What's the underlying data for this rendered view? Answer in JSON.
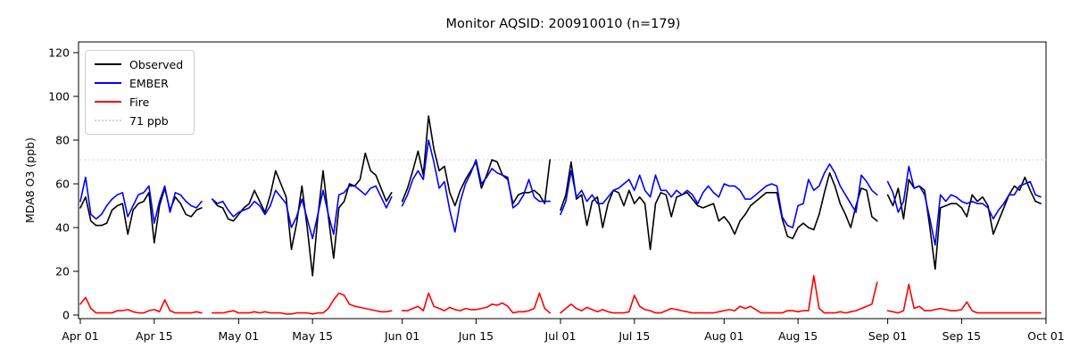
{
  "chart_data": {
    "type": "line",
    "title": "Monitor AQSID: 200910010 (n=179)",
    "ylabel": "MDA8 O3 (ppb)",
    "xlabel": "",
    "grid": false,
    "legend_position": "upper left",
    "ylim": [
      -2,
      125
    ],
    "yticks": [
      0,
      20,
      40,
      60,
      80,
      100,
      120
    ],
    "xticks": [
      {
        "label": "Apr 01",
        "day": 0
      },
      {
        "label": "Apr 15",
        "day": 14
      },
      {
        "label": "May 01",
        "day": 30
      },
      {
        "label": "May 15",
        "day": 44
      },
      {
        "label": "Jun 01",
        "day": 61
      },
      {
        "label": "Jun 15",
        "day": 75
      },
      {
        "label": "Jul 01",
        "day": 91
      },
      {
        "label": "Jul 15",
        "day": 105
      },
      {
        "label": "Aug 01",
        "day": 122
      },
      {
        "label": "Aug 15",
        "day": 136
      },
      {
        "label": "Sep 01",
        "day": 153
      },
      {
        "label": "Sep 15",
        "day": 167
      },
      {
        "label": "Oct 01",
        "day": 183
      }
    ],
    "x_dates": [
      "04-01",
      "04-02",
      "04-03",
      "04-04",
      "04-05",
      "04-06",
      "04-07",
      "04-08",
      "04-09",
      "04-10",
      "04-11",
      "04-12",
      "04-13",
      "04-14",
      "04-15",
      "04-16",
      "04-17",
      "04-18",
      "04-19",
      "04-20",
      "04-21",
      "04-22",
      "04-23",
      "04-24",
      "04-25",
      "04-26",
      "04-27",
      "04-28",
      "04-29",
      "04-30",
      "05-01",
      "05-02",
      "05-03",
      "05-04",
      "05-05",
      "05-06",
      "05-07",
      "05-08",
      "05-09",
      "05-10",
      "05-11",
      "05-12",
      "05-13",
      "05-14",
      "05-15",
      "05-16",
      "05-17",
      "05-18",
      "05-19",
      "05-20",
      "05-21",
      "05-22",
      "05-23",
      "05-24",
      "05-25",
      "05-26",
      "05-27",
      "05-28",
      "05-29",
      "05-30",
      "05-31",
      "06-01",
      "06-02",
      "06-03",
      "06-04",
      "06-05",
      "06-06",
      "06-07",
      "06-08",
      "06-09",
      "06-10",
      "06-11",
      "06-12",
      "06-13",
      "06-14",
      "06-15",
      "06-16",
      "06-17",
      "06-18",
      "06-19",
      "06-20",
      "06-21",
      "06-22",
      "06-23",
      "06-24",
      "06-25",
      "06-26",
      "06-27",
      "06-28",
      "06-29",
      "06-30",
      "07-01",
      "07-02",
      "07-03",
      "07-04",
      "07-05",
      "07-06",
      "07-07",
      "07-08",
      "07-09",
      "07-10",
      "07-11",
      "07-12",
      "07-13",
      "07-14",
      "07-15",
      "07-16",
      "07-17",
      "07-18",
      "07-19",
      "07-20",
      "07-21",
      "07-22",
      "07-23",
      "07-24",
      "07-25",
      "07-26",
      "07-27",
      "07-28",
      "07-29",
      "07-30",
      "07-31",
      "08-01",
      "08-02",
      "08-03",
      "08-04",
      "08-05",
      "08-06",
      "08-07",
      "08-08",
      "08-09",
      "08-10",
      "08-11",
      "08-12",
      "08-13",
      "08-14",
      "08-15",
      "08-16",
      "08-17",
      "08-18",
      "08-19",
      "08-20",
      "08-21",
      "08-22",
      "08-23",
      "08-24",
      "08-25",
      "08-26",
      "08-27",
      "08-28",
      "08-29",
      "08-30",
      "08-31",
      "09-01",
      "09-02",
      "09-03",
      "09-04",
      "09-05",
      "09-06",
      "09-07",
      "09-08",
      "09-09",
      "09-10",
      "09-11",
      "09-12",
      "09-13",
      "09-14",
      "09-15",
      "09-16",
      "09-17",
      "09-18",
      "09-19",
      "09-20",
      "09-21",
      "09-22",
      "09-23",
      "09-24",
      "09-25",
      "09-26",
      "09-27",
      "09-28",
      "09-29",
      "09-30"
    ],
    "series": [
      {
        "name": "Observed",
        "color": "#000000",
        "values": [
          49,
          54,
          43,
          41,
          41,
          42,
          48,
          50,
          51,
          37,
          48,
          51,
          52,
          56,
          33,
          50,
          58,
          48,
          54,
          51,
          46,
          45,
          48,
          49,
          null,
          53,
          50,
          49,
          44,
          43,
          46,
          49,
          51,
          57,
          52,
          47,
          55,
          66,
          60,
          54,
          30,
          42,
          59,
          40,
          18,
          45,
          66,
          45,
          26,
          49,
          52,
          60,
          59,
          62,
          74,
          66,
          64,
          58,
          52,
          56,
          null,
          52,
          58,
          66,
          75,
          64,
          91,
          76,
          66,
          68,
          56,
          50,
          57,
          62,
          66,
          70,
          58,
          64,
          71,
          70,
          64,
          62,
          51,
          55,
          56,
          56,
          57,
          55,
          51,
          71,
          null,
          48,
          55,
          70,
          53,
          55,
          41,
          52,
          54,
          40,
          51,
          57,
          56,
          50,
          57,
          51,
          54,
          51,
          30,
          51,
          56,
          55,
          45,
          54,
          55,
          56,
          53,
          50,
          49,
          50,
          51,
          43,
          45,
          42,
          37,
          43,
          46,
          50,
          52,
          54,
          56,
          56,
          56,
          44,
          36,
          35,
          40,
          42,
          40,
          39,
          46,
          56,
          65,
          59,
          51,
          46,
          40,
          50,
          58,
          57,
          45,
          43,
          null,
          55,
          50,
          58,
          44,
          62,
          58,
          59,
          57,
          40,
          21,
          49,
          50,
          51,
          51,
          49,
          45,
          55,
          52,
          54,
          50,
          37,
          43,
          49,
          55,
          59,
          57,
          63,
          57,
          52,
          51
        ]
      },
      {
        "name": "EMBER",
        "color": "#0000ff",
        "values": [
          52,
          63,
          46,
          44,
          46,
          50,
          53,
          55,
          56,
          45,
          50,
          55,
          56,
          59,
          42,
          52,
          59,
          47,
          56,
          55,
          52,
          50,
          49,
          52,
          null,
          53,
          51,
          52,
          48,
          45,
          47,
          48,
          49,
          52,
          50,
          46,
          50,
          57,
          54,
          51,
          40,
          45,
          53,
          44,
          35,
          46,
          57,
          46,
          37,
          55,
          56,
          59,
          59,
          57,
          55,
          58,
          59,
          54,
          49,
          54,
          null,
          50,
          55,
          62,
          66,
          62,
          80,
          70,
          58,
          61,
          48,
          38,
          52,
          60,
          65,
          71,
          60,
          63,
          67,
          65,
          64,
          63,
          49,
          51,
          55,
          62,
          54,
          52,
          52,
          52,
          null,
          46,
          52,
          66,
          54,
          57,
          52,
          55,
          51,
          51,
          54,
          57,
          58,
          60,
          62,
          57,
          64,
          57,
          54,
          64,
          57,
          57,
          54,
          57,
          55,
          57,
          55,
          51,
          56,
          59,
          56,
          54,
          60,
          59,
          59,
          57,
          53,
          53,
          55,
          57,
          59,
          60,
          59,
          45,
          41,
          40,
          50,
          51,
          62,
          57,
          59,
          65,
          69,
          65,
          59,
          55,
          51,
          47,
          64,
          61,
          57,
          55,
          null,
          61,
          56,
          47,
          52,
          68,
          58,
          59,
          55,
          44,
          32,
          55,
          52,
          55,
          54,
          52,
          51,
          52,
          51,
          51,
          49,
          44,
          48,
          51,
          55,
          55,
          59,
          60,
          61,
          55,
          54
        ]
      },
      {
        "name": "Fire",
        "color": "#ff0000",
        "values": [
          5,
          8,
          3,
          1,
          1,
          1,
          1,
          2,
          2,
          2.5,
          1.5,
          1,
          1,
          2,
          2.5,
          1.5,
          7,
          2,
          1,
          1,
          1,
          1,
          1.5,
          1,
          null,
          1,
          1,
          1,
          1.5,
          2,
          1,
          1,
          1,
          1.5,
          1,
          1.5,
          1,
          1,
          1,
          0.5,
          0.5,
          1,
          1,
          1,
          0.5,
          1,
          1,
          3,
          7,
          10,
          9,
          5,
          4,
          3.5,
          3,
          2.5,
          2,
          1.5,
          1.5,
          2,
          null,
          2,
          2,
          3,
          4,
          2,
          10,
          4,
          3,
          2,
          3.5,
          2.5,
          2,
          3,
          2.5,
          2.5,
          3,
          3.5,
          5,
          4.5,
          5.5,
          4,
          1,
          1.5,
          1.5,
          2,
          3,
          10,
          3,
          1,
          null,
          1,
          3,
          5,
          3,
          2,
          3.5,
          2.5,
          1.5,
          2.5,
          1.5,
          1,
          1,
          1,
          1.5,
          9,
          4,
          2.5,
          2,
          1,
          1,
          2,
          3,
          2.5,
          2,
          1.5,
          1,
          1,
          1,
          1,
          1,
          1.5,
          2,
          2.5,
          2,
          4,
          3,
          4,
          2.5,
          1,
          1,
          1,
          1,
          1,
          2,
          2,
          1.5,
          2,
          2,
          18,
          3,
          1,
          1,
          1,
          1.5,
          1,
          1.5,
          2,
          3,
          4,
          5,
          15,
          null,
          2,
          1.5,
          1,
          2,
          14,
          3,
          4,
          2,
          2,
          2.5,
          3,
          2.5,
          2,
          2,
          2.5,
          6,
          2,
          1,
          1,
          1,
          1,
          1,
          1,
          1,
          1,
          1,
          1,
          1,
          1,
          1
        ]
      }
    ],
    "threshold": {
      "label": "71 ppb",
      "value": 71,
      "color": "#d3d3d3",
      "style": "dotted"
    }
  }
}
